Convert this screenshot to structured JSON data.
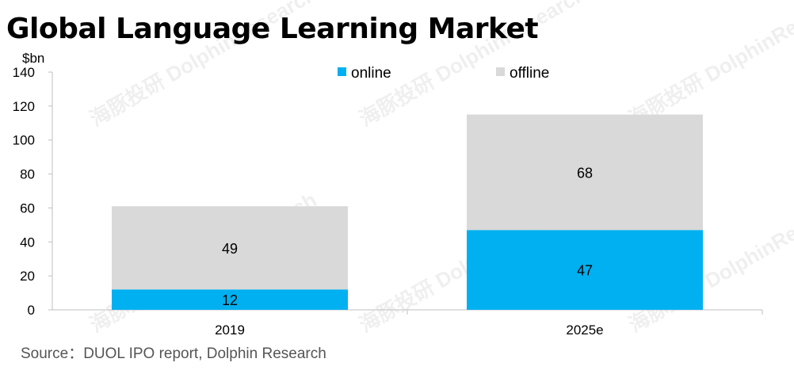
{
  "chart_data": {
    "type": "bar",
    "stacked": true,
    "title": "Global Language Learning Market",
    "ylabel": "$bn",
    "categories": [
      "2019",
      "2025e"
    ],
    "series": [
      {
        "name": "online",
        "values": [
          12,
          47
        ],
        "color": "#00B0F0"
      },
      {
        "name": "offline",
        "values": [
          49,
          68
        ],
        "color": "#D9D9D9"
      }
    ],
    "ylim": [
      0,
      140
    ],
    "yticks": [
      "0",
      "20",
      "40",
      "60",
      "80",
      "100",
      "120",
      "140"
    ],
    "legend": "top",
    "grid": false
  },
  "source": "Source：DUOL IPO report, Dolphin Research",
  "watermark": "海豚投研 DolphinResearch"
}
